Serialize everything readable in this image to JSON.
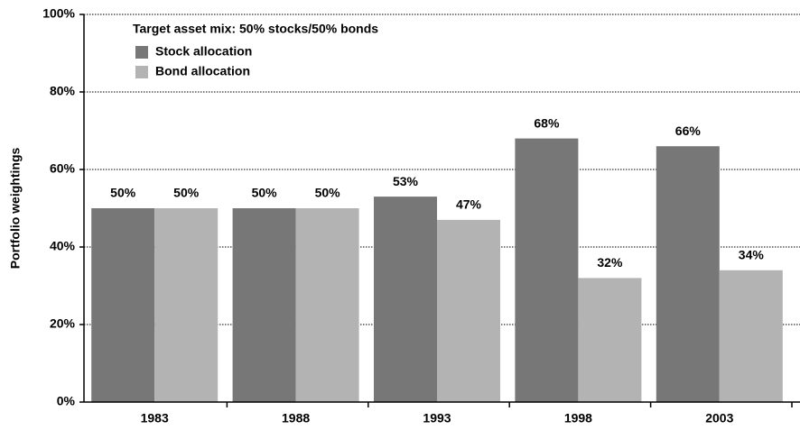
{
  "chart_data": {
    "type": "bar",
    "legend_title": "Target asset mix: 50% stocks/50% bonds",
    "y_label": "Portfolio weightings",
    "categories": [
      "1983",
      "1988",
      "1993",
      "1998",
      "2003"
    ],
    "series": [
      {
        "name": "Stock allocation",
        "color": "#777777",
        "values": [
          50,
          50,
          53,
          68,
          66
        ],
        "value_labels": [
          "50%",
          "50%",
          "53%",
          "68%",
          "66%"
        ]
      },
      {
        "name": "Bond allocation",
        "color": "#b3b3b3",
        "values": [
          50,
          50,
          47,
          32,
          34
        ],
        "value_labels": [
          "50%",
          "50%",
          "47%",
          "32%",
          "34%"
        ]
      }
    ],
    "ylim": [
      0,
      100
    ],
    "yticks": [
      {
        "value": 0,
        "label": "0%"
      },
      {
        "value": 20,
        "label": "20%"
      },
      {
        "value": 40,
        "label": "40%"
      },
      {
        "value": 60,
        "label": "60%"
      },
      {
        "value": 80,
        "label": "80%"
      },
      {
        "value": 100,
        "label": "100%"
      }
    ],
    "grid": true
  }
}
